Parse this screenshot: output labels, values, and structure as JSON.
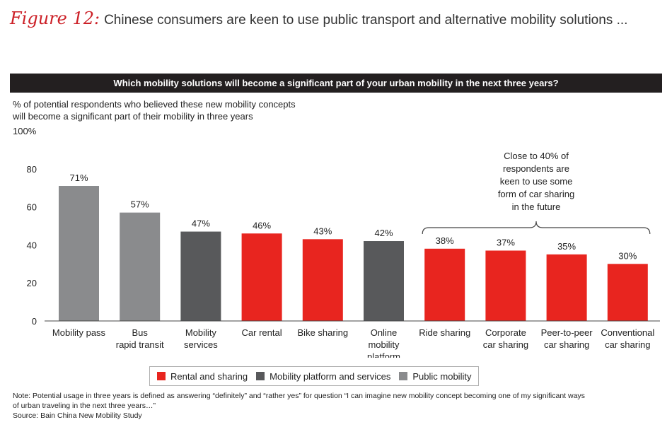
{
  "figure": {
    "label": "Figure 12:",
    "title": "Chinese consumers are keen to use public transport and alternative mobility solutions ..."
  },
  "question": "Which mobility solutions will become a significant part of your urban mobility in the next three years?",
  "subtitle_lines": [
    "% of potential respondents who believed these new mobility concepts",
    "will become a significant part of their mobility in three years"
  ],
  "colors": {
    "rental": "#e8251f",
    "platform": "#58595b",
    "public": "#8a8b8d"
  },
  "chart_data": {
    "type": "bar",
    "title": "",
    "ylabel": "",
    "ylim": [
      0,
      100
    ],
    "yticks": [
      "0",
      "20",
      "40",
      "60",
      "80",
      "100%"
    ],
    "grid": false,
    "categories": [
      "Mobility pass|",
      "Bus|rapid transit",
      "Mobility|services",
      "Car rental",
      "Bike sharing",
      "Online|mobility|platform",
      "Ride sharing",
      "Corporate|car sharing",
      "Peer-to-peer|car sharing",
      "Conventional|car sharing"
    ],
    "values": [
      71,
      57,
      47,
      46,
      43,
      42,
      38,
      37,
      35,
      30
    ],
    "data_labels": [
      "71%",
      "57%",
      "47%",
      "46%",
      "43%",
      "42%",
      "38%",
      "37%",
      "35%",
      "30%"
    ],
    "groups": [
      "public",
      "public",
      "platform",
      "rental",
      "rental",
      "platform",
      "rental",
      "rental",
      "rental",
      "rental"
    ],
    "annotation": {
      "lines": [
        "Close to 40% of",
        "respondents are",
        "keen to use some",
        "form of car sharing",
        "in the future"
      ],
      "bracket_from": 6,
      "bracket_to": 9
    }
  },
  "legend": {
    "items": [
      {
        "key": "rental",
        "label": "Rental and sharing"
      },
      {
        "key": "platform",
        "label": "Mobility platform and services"
      },
      {
        "key": "public",
        "label": "Public mobility"
      }
    ]
  },
  "note": {
    "lines": [
      "Note: Potential usage in three years is defined as answering “definitely” and “rather yes” for question “I can imagine new mobility concept becoming one of my significant ways",
      "of urban traveling in the next three years…”",
      "Source: Bain China New Mobility Study"
    ]
  }
}
